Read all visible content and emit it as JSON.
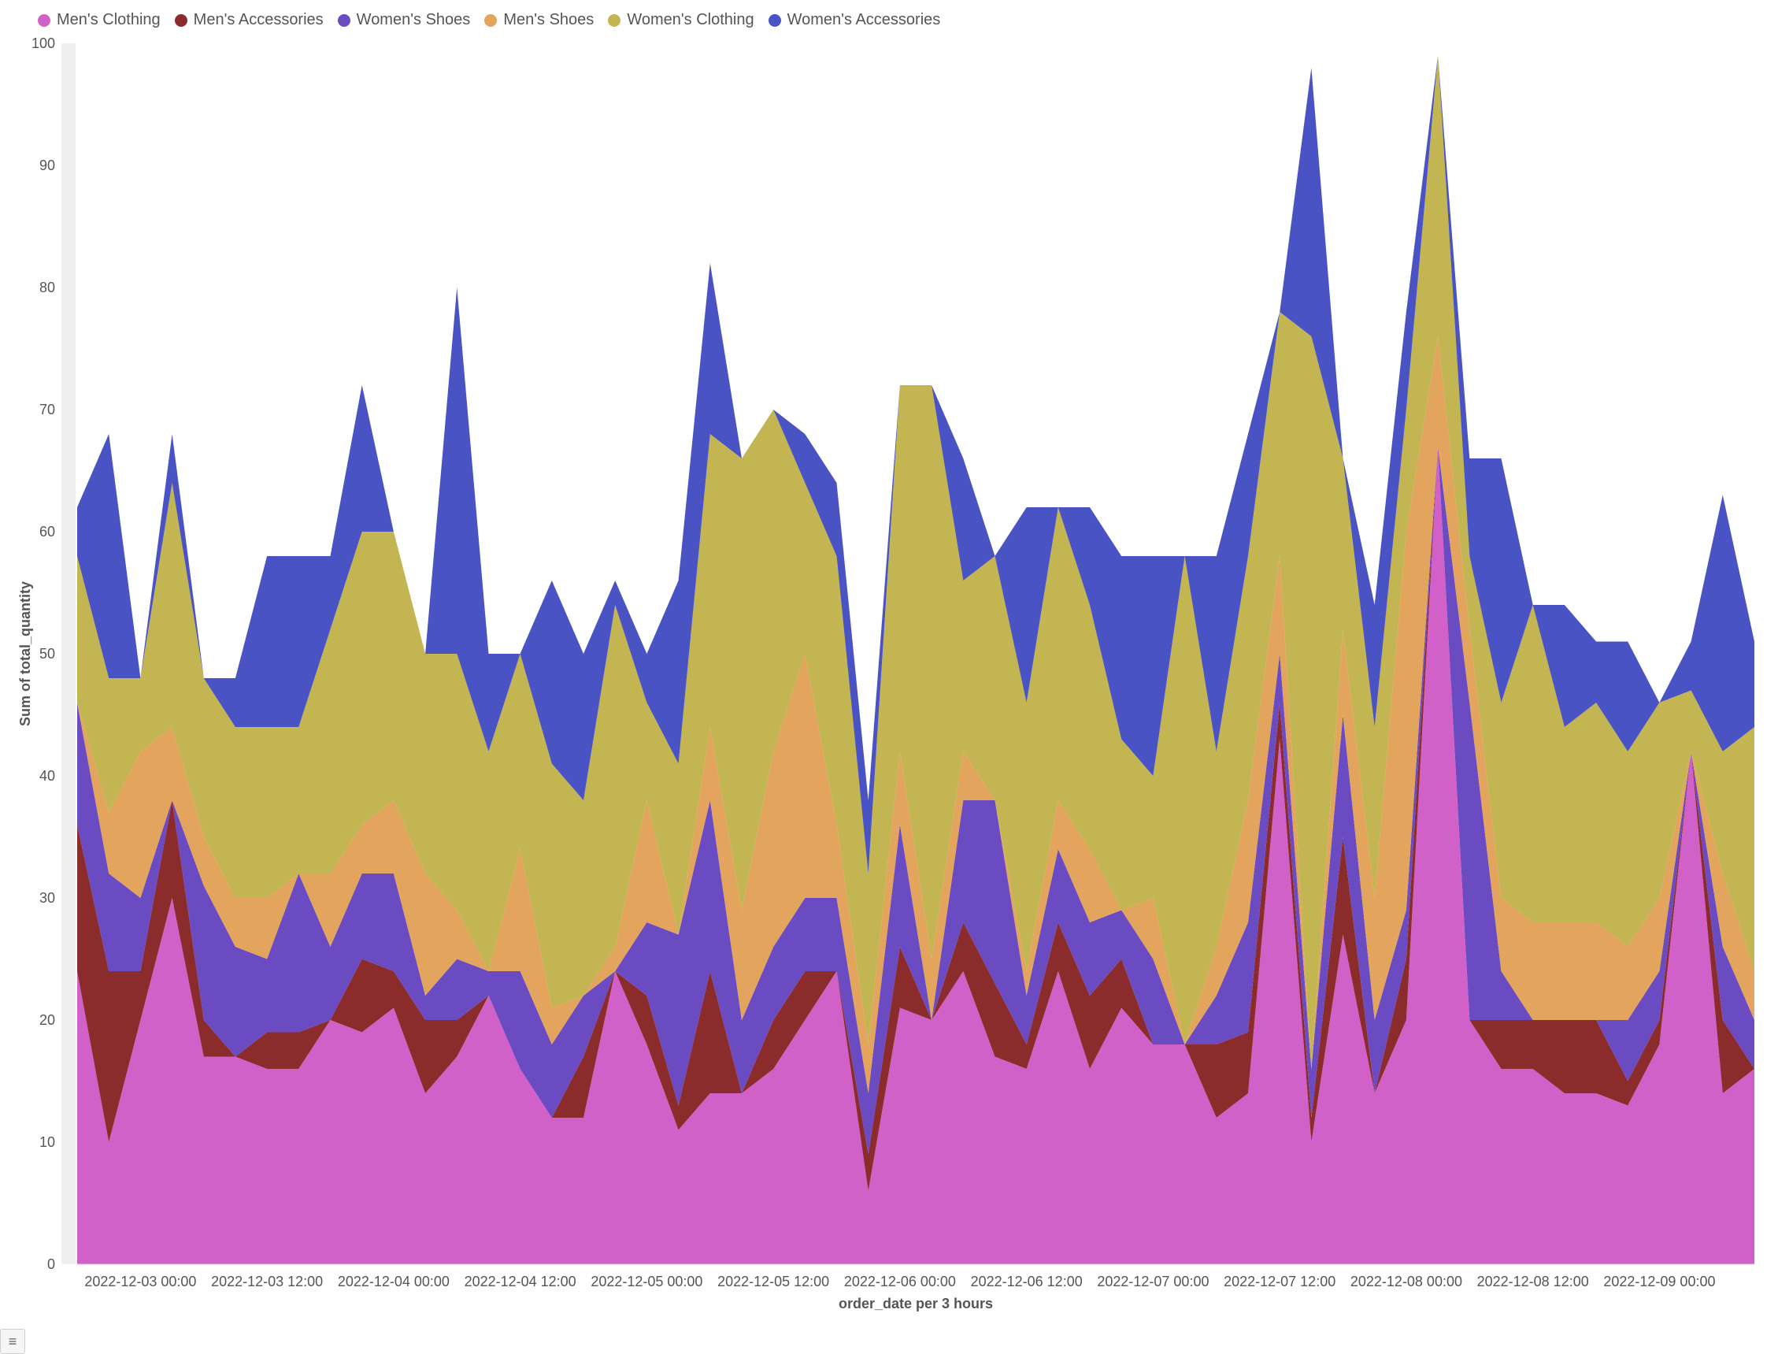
{
  "chart": {
    "type": "area-stacked",
    "background_color": "#ffffff",
    "plot_background": "#ffffff",
    "font_family": "-apple-system",
    "legend": {
      "position": "top-left",
      "fontsize": 20,
      "items": [
        {
          "label": "Men's Clothing",
          "color": "#d160c8"
        },
        {
          "label": "Men's Accessories",
          "color": "#8c2b2b"
        },
        {
          "label": "Women's Shoes",
          "color": "#6a4bc1"
        },
        {
          "label": "Men's Shoes",
          "color": "#e3a45d"
        },
        {
          "label": "Women's Clothing",
          "color": "#c2b552"
        },
        {
          "label": "Women's Accessories",
          "color": "#4a53c4"
        }
      ]
    },
    "y_axis": {
      "label": "Sum of total_quantity",
      "label_fontsize": 18,
      "min": 0,
      "max": 100,
      "tick_step": 10,
      "tick_fontsize": 18,
      "tick_color": "#555555",
      "panel_color": "#eeeeee"
    },
    "x_axis": {
      "label": "order_date per 3 hours",
      "label_fontsize": 18,
      "tick_fontsize": 18,
      "tick_color": "#555555",
      "tick_labels": [
        "2022-12-03 00:00",
        "2022-12-03 12:00",
        "2022-12-04 00:00",
        "2022-12-04 12:00",
        "2022-12-05 00:00",
        "2022-12-05 12:00",
        "2022-12-06 00:00",
        "2022-12-06 12:00",
        "2022-12-07 00:00",
        "2022-12-07 12:00",
        "2022-12-08 00:00",
        "2022-12-08 12:00",
        "2022-12-09 00:00"
      ],
      "tick_positions_idx": [
        2,
        6,
        10,
        14,
        18,
        22,
        26,
        30,
        34,
        38,
        42,
        46,
        50
      ]
    },
    "series_order": [
      "mens_clothing",
      "mens_accessories",
      "womens_shoes",
      "mens_shoes",
      "womens_clothing",
      "womens_accessories"
    ],
    "series_colors": {
      "mens_clothing": "#d160c8",
      "mens_accessories": "#8c2b2b",
      "womens_shoes": "#6a4bc1",
      "mens_shoes": "#e3a45d",
      "womens_clothing": "#c2b552",
      "womens_accessories": "#4a53c4"
    },
    "n_points": 54,
    "data": {
      "mens_clothing": [
        24,
        10,
        20,
        30,
        17,
        17,
        16,
        16,
        20,
        19,
        21,
        14,
        17,
        22,
        16,
        12,
        12,
        24,
        18,
        11,
        14,
        14,
        16,
        20,
        24,
        6,
        21,
        20,
        24,
        17,
        16,
        24,
        16,
        21,
        18,
        18,
        12,
        14,
        43,
        10,
        27,
        14,
        20,
        67,
        20,
        16,
        16,
        14,
        14,
        13,
        18,
        42,
        14,
        16
      ],
      "mens_accessories": [
        12,
        14,
        4,
        8,
        3,
        0,
        3,
        3,
        0,
        6,
        3,
        6,
        3,
        0,
        0,
        0,
        5,
        0,
        4,
        2,
        10,
        0,
        4,
        4,
        0,
        3,
        5,
        0,
        4,
        6,
        2,
        4,
        6,
        4,
        0,
        0,
        6,
        5,
        3,
        2,
        8,
        0,
        5,
        0,
        0,
        4,
        4,
        6,
        6,
        2,
        2,
        0,
        6,
        0
      ],
      "womens_shoes": [
        10,
        8,
        6,
        0,
        11,
        9,
        6,
        13,
        6,
        7,
        8,
        2,
        5,
        2,
        8,
        6,
        5,
        0,
        6,
        14,
        14,
        6,
        6,
        6,
        6,
        5,
        10,
        0,
        10,
        15,
        4,
        6,
        6,
        4,
        7,
        0,
        4,
        9,
        4,
        4,
        10,
        6,
        4,
        0,
        26,
        4,
        0,
        0,
        0,
        5,
        4,
        0,
        6,
        4
      ],
      "mens_shoes": [
        0,
        5,
        12,
        6,
        4,
        4,
        5,
        0,
        6,
        4,
        6,
        10,
        4,
        0,
        10,
        3,
        0,
        2,
        10,
        0,
        6,
        9,
        16,
        20,
        6,
        4,
        6,
        5,
        4,
        0,
        2,
        4,
        6,
        0,
        5,
        0,
        4,
        10,
        8,
        0,
        7,
        10,
        31,
        9,
        6,
        6,
        8,
        8,
        8,
        6,
        6,
        0,
        6,
        4
      ],
      "womens_clothing": [
        12,
        11,
        6,
        20,
        13,
        14,
        14,
        12,
        20,
        24,
        22,
        18,
        21,
        18,
        16,
        20,
        16,
        28,
        8,
        14,
        24,
        37,
        28,
        14,
        22,
        14,
        30,
        47,
        14,
        20,
        22,
        24,
        20,
        14,
        10,
        40,
        16,
        20,
        20,
        60,
        14,
        14,
        10,
        23,
        6,
        16,
        26,
        16,
        18,
        16,
        16,
        5,
        10,
        20
      ],
      "womens_accessories": [
        4,
        20,
        0,
        4,
        0,
        4,
        14,
        14,
        6,
        12,
        0,
        0,
        30,
        8,
        0,
        15,
        12,
        2,
        4,
        15,
        14,
        0,
        0,
        4,
        6,
        6,
        0,
        0,
        10,
        0,
        16,
        0,
        8,
        15,
        18,
        0,
        16,
        10,
        0,
        22,
        0,
        10,
        8,
        0,
        8,
        20,
        0,
        10,
        5,
        9,
        0,
        4,
        21,
        7
      ]
    },
    "area_opacity": 1.0
  },
  "toolbar": {
    "legend_toggle_label": "≡"
  }
}
